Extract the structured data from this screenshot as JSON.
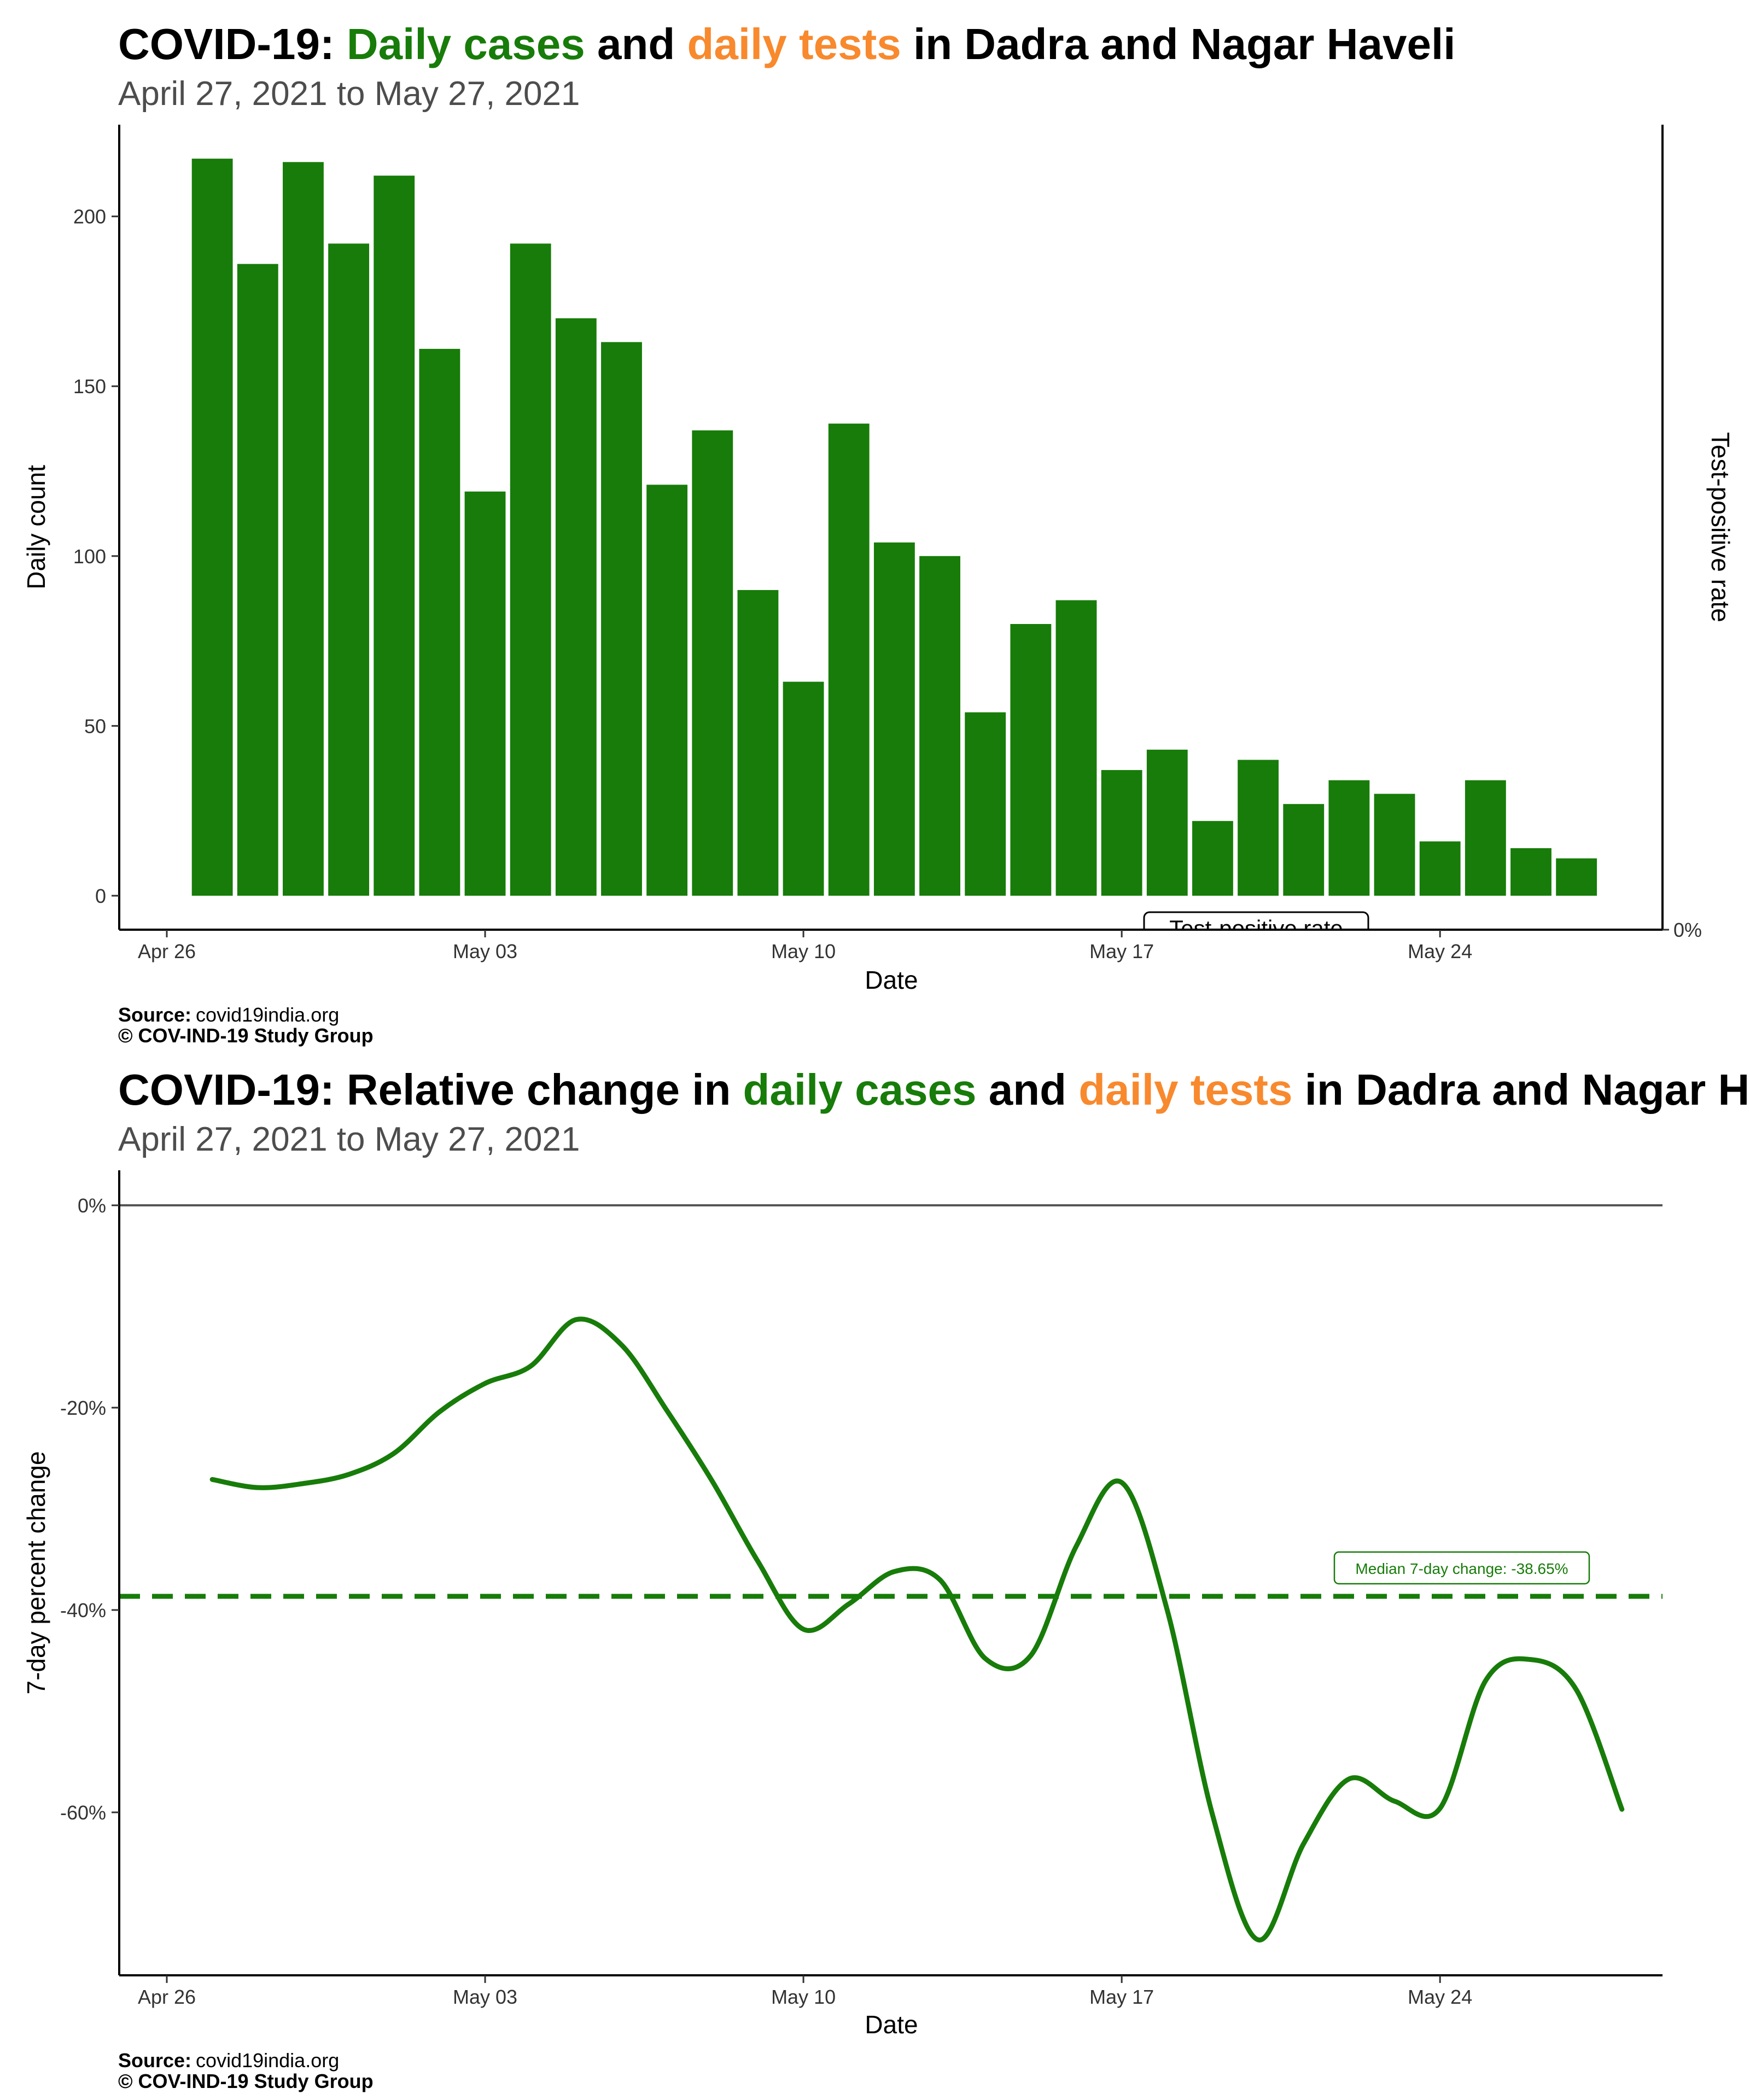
{
  "colors": {
    "cases": "#177c09",
    "tests": "#f8892d",
    "text": "#000000",
    "subtitle": "#4d4d4d"
  },
  "caption": {
    "source_label": "Source:",
    "source": "covid19india.org",
    "copyright": "© COV-IND-19 Study Group"
  },
  "chart_data": [
    {
      "type": "bar",
      "title_parts": [
        {
          "text": "COVID-19: ",
          "color": "text"
        },
        {
          "text": "Daily cases",
          "color": "cases"
        },
        {
          "text": " and ",
          "color": "text"
        },
        {
          "text": "daily tests",
          "color": "tests"
        },
        {
          "text": " in Dadra and Nagar Haveli",
          "color": "text"
        }
      ],
      "subtitle": "April 27, 2021 to May 27, 2021",
      "xlabel": "Date",
      "ylabel": "Daily count",
      "y2label": "Test-positive rate",
      "y2ticks": [
        "0%"
      ],
      "legend_label": "Test-positive rate",
      "xticks": [
        "Apr 26",
        "May 03",
        "May 10",
        "May 17",
        "May 24"
      ],
      "yticks": [
        0,
        50,
        100,
        150,
        200
      ],
      "ylim": [
        -10,
        227
      ],
      "x_start_date": "2021-04-27",
      "values": [
        217,
        186,
        216,
        192,
        212,
        161,
        119,
        192,
        170,
        163,
        121,
        137,
        90,
        63,
        139,
        104,
        100,
        54,
        80,
        87,
        37,
        43,
        22,
        40,
        27,
        34,
        30,
        16,
        34,
        14,
        11
      ]
    },
    {
      "type": "line",
      "title_parts": [
        {
          "text": "COVID-19: Relative change in ",
          "color": "text"
        },
        {
          "text": "daily cases",
          "color": "cases"
        },
        {
          "text": " and ",
          "color": "text"
        },
        {
          "text": "daily tests",
          "color": "tests"
        },
        {
          "text": " in Dadra and Nagar Haveli",
          "color": "text"
        }
      ],
      "subtitle": "April 27, 2021 to May 27, 2021",
      "xlabel": "Date",
      "ylabel": "7-day percent change",
      "xticks": [
        "Apr 26",
        "May 03",
        "May 10",
        "May 17",
        "May 24"
      ],
      "yticks": [
        "0%",
        "-20%",
        "-40%",
        "-60%"
      ],
      "median_label": "Median 7-day change: -38.65%",
      "median": -38.65,
      "series": [
        {
          "points": [
            [
              "2021-04-27",
              -27.1
            ],
            [
              "2021-04-28",
              -27.9
            ],
            [
              "2021-04-29",
              -27.5
            ],
            [
              "2021-04-30",
              -26.6
            ],
            [
              "2021-05-01",
              -24.5
            ],
            [
              "2021-05-02",
              -20.4
            ],
            [
              "2021-05-03",
              -17.6
            ],
            [
              "2021-05-04",
              -15.9
            ],
            [
              "2021-05-05",
              -11.3
            ],
            [
              "2021-05-06",
              -13.8
            ],
            [
              "2021-05-07",
              -20.3
            ],
            [
              "2021-05-08",
              -27.3
            ],
            [
              "2021-05-09",
              -35.2
            ],
            [
              "2021-05-10",
              -41.9
            ],
            [
              "2021-05-11",
              -39.4
            ],
            [
              "2021-05-12",
              -36.2
            ],
            [
              "2021-05-13",
              -37.0
            ],
            [
              "2021-05-14",
              -44.8
            ],
            [
              "2021-05-15",
              -44.5
            ],
            [
              "2021-05-16",
              -33.7
            ],
            [
              "2021-05-17",
              -27.4
            ],
            [
              "2021-05-18",
              -40.0
            ],
            [
              "2021-05-19",
              -60.3
            ],
            [
              "2021-05-20",
              -72.6
            ],
            [
              "2021-05-21",
              -63.1
            ],
            [
              "2021-05-22",
              -56.7
            ],
            [
              "2021-05-23",
              -58.9
            ],
            [
              "2021-05-24",
              -59.6
            ],
            [
              "2021-05-25",
              -47.0
            ],
            [
              "2021-05-26",
              -44.9
            ],
            [
              "2021-05-27",
              -47.9
            ],
            [
              "2021-05-28",
              -59.7
            ]
          ]
        }
      ]
    }
  ]
}
